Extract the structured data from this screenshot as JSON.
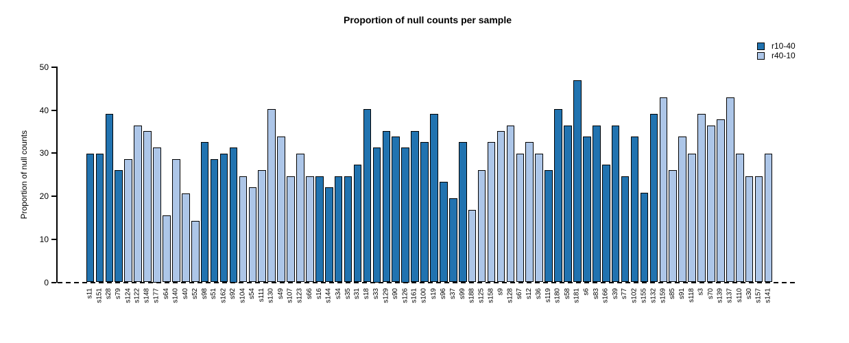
{
  "chart_data": {
    "type": "bar",
    "title": "Proportion of null counts per sample",
    "xlabel": "",
    "ylabel": "Proportion of null counts",
    "ylim": [
      0,
      50
    ],
    "yticks": [
      0,
      10,
      20,
      30,
      40,
      50
    ],
    "grid": false,
    "zero_line_style": "dashed",
    "bar_border_color": "#000000",
    "legend_position": "top-right",
    "series": [
      {
        "name": "r10-40",
        "color": "#2173b0"
      },
      {
        "name": "r40-10",
        "color": "#adc6e8"
      }
    ],
    "bars": [
      {
        "label": "s11",
        "value": 29.9,
        "series": 0
      },
      {
        "label": "s151",
        "value": 29.9,
        "series": 0
      },
      {
        "label": "s28",
        "value": 39.1,
        "series": 0
      },
      {
        "label": "s79",
        "value": 26.0,
        "series": 0
      },
      {
        "label": "s124",
        "value": 28.6,
        "series": 1
      },
      {
        "label": "s122",
        "value": 36.5,
        "series": 1
      },
      {
        "label": "s148",
        "value": 35.1,
        "series": 1
      },
      {
        "label": "s177",
        "value": 31.3,
        "series": 1
      },
      {
        "label": "s64",
        "value": 15.6,
        "series": 1
      },
      {
        "label": "s140",
        "value": 28.6,
        "series": 1
      },
      {
        "label": "s40",
        "value": 20.7,
        "series": 1
      },
      {
        "label": "s52",
        "value": 14.3,
        "series": 1
      },
      {
        "label": "s98",
        "value": 32.6,
        "series": 0
      },
      {
        "label": "s51",
        "value": 28.6,
        "series": 0
      },
      {
        "label": "s162",
        "value": 29.9,
        "series": 0
      },
      {
        "label": "s92",
        "value": 31.3,
        "series": 0
      },
      {
        "label": "s104",
        "value": 24.7,
        "series": 1
      },
      {
        "label": "s54",
        "value": 22.1,
        "series": 1
      },
      {
        "label": "s111",
        "value": 26.0,
        "series": 1
      },
      {
        "label": "s130",
        "value": 40.3,
        "series": 1
      },
      {
        "label": "s49",
        "value": 33.9,
        "series": 1
      },
      {
        "label": "s107",
        "value": 24.7,
        "series": 1
      },
      {
        "label": "s123",
        "value": 29.9,
        "series": 1
      },
      {
        "label": "s66",
        "value": 24.7,
        "series": 1
      },
      {
        "label": "s16",
        "value": 24.7,
        "series": 0
      },
      {
        "label": "s144",
        "value": 22.1,
        "series": 0
      },
      {
        "label": "s34",
        "value": 24.7,
        "series": 0
      },
      {
        "label": "s35",
        "value": 24.7,
        "series": 0
      },
      {
        "label": "s31",
        "value": 27.4,
        "series": 0
      },
      {
        "label": "s18",
        "value": 40.3,
        "series": 0
      },
      {
        "label": "s33",
        "value": 31.3,
        "series": 0
      },
      {
        "label": "s129",
        "value": 35.1,
        "series": 0
      },
      {
        "label": "s90",
        "value": 33.9,
        "series": 0
      },
      {
        "label": "s126",
        "value": 31.3,
        "series": 0
      },
      {
        "label": "s161",
        "value": 35.1,
        "series": 0
      },
      {
        "label": "s100",
        "value": 32.6,
        "series": 0
      },
      {
        "label": "s19",
        "value": 39.1,
        "series": 0
      },
      {
        "label": "s96",
        "value": 23.4,
        "series": 0
      },
      {
        "label": "s37",
        "value": 19.5,
        "series": 0
      },
      {
        "label": "s99",
        "value": 32.6,
        "series": 0
      },
      {
        "label": "s188",
        "value": 16.9,
        "series": 1
      },
      {
        "label": "s125",
        "value": 26.0,
        "series": 1
      },
      {
        "label": "s158",
        "value": 32.6,
        "series": 1
      },
      {
        "label": "s9",
        "value": 35.1,
        "series": 1
      },
      {
        "label": "s128",
        "value": 36.5,
        "series": 1
      },
      {
        "label": "s67",
        "value": 29.9,
        "series": 1
      },
      {
        "label": "s12",
        "value": 32.6,
        "series": 1
      },
      {
        "label": "s36",
        "value": 29.9,
        "series": 1
      },
      {
        "label": "s119",
        "value": 26.0,
        "series": 0
      },
      {
        "label": "s180",
        "value": 40.3,
        "series": 0
      },
      {
        "label": "s58",
        "value": 36.5,
        "series": 0
      },
      {
        "label": "s181",
        "value": 47.0,
        "series": 0
      },
      {
        "label": "s6",
        "value": 33.9,
        "series": 0
      },
      {
        "label": "s83",
        "value": 36.5,
        "series": 0
      },
      {
        "label": "s166",
        "value": 27.4,
        "series": 0
      },
      {
        "label": "s39",
        "value": 36.5,
        "series": 0
      },
      {
        "label": "s77",
        "value": 24.7,
        "series": 0
      },
      {
        "label": "s102",
        "value": 33.9,
        "series": 0
      },
      {
        "label": "s155",
        "value": 20.8,
        "series": 0
      },
      {
        "label": "s132",
        "value": 39.1,
        "series": 0
      },
      {
        "label": "s159",
        "value": 43.0,
        "series": 1
      },
      {
        "label": "s85",
        "value": 26.0,
        "series": 1
      },
      {
        "label": "s91",
        "value": 33.9,
        "series": 1
      },
      {
        "label": "s118",
        "value": 29.9,
        "series": 1
      },
      {
        "label": "s3",
        "value": 39.1,
        "series": 1
      },
      {
        "label": "s70",
        "value": 36.5,
        "series": 1
      },
      {
        "label": "s139",
        "value": 37.9,
        "series": 1
      },
      {
        "label": "s137",
        "value": 43.0,
        "series": 1
      },
      {
        "label": "s110",
        "value": 29.9,
        "series": 1
      },
      {
        "label": "s30",
        "value": 24.7,
        "series": 1
      },
      {
        "label": "s157",
        "value": 24.7,
        "series": 1
      },
      {
        "label": "s141",
        "value": 29.9,
        "series": 1
      }
    ]
  }
}
